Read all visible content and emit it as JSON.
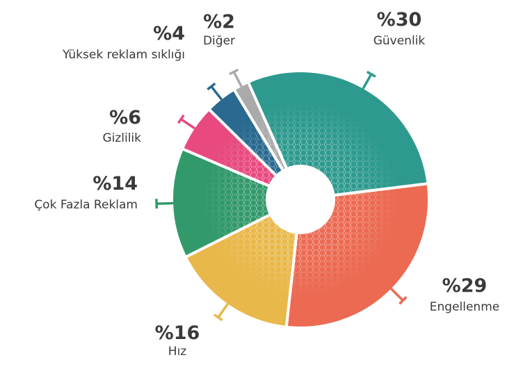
{
  "chart_data": {
    "type": "pie",
    "categories": [
      "Güvenlik",
      "Engellenme",
      "Hız",
      "Çok Fazla Reklam",
      "Gizlilik",
      "Yüksek reklam sıklığı",
      "Diğer"
    ],
    "values": [
      30,
      29,
      16,
      14,
      6,
      4,
      2
    ],
    "value_labels": [
      "%30",
      "%29",
      "%16",
      "%14",
      "%6",
      "%4",
      "%2"
    ],
    "colors": [
      "#2e9a8f",
      "#ec6a52",
      "#e9b84a",
      "#32996a",
      "#e84a7f",
      "#2a6a90",
      "#aaaaaa"
    ]
  }
}
